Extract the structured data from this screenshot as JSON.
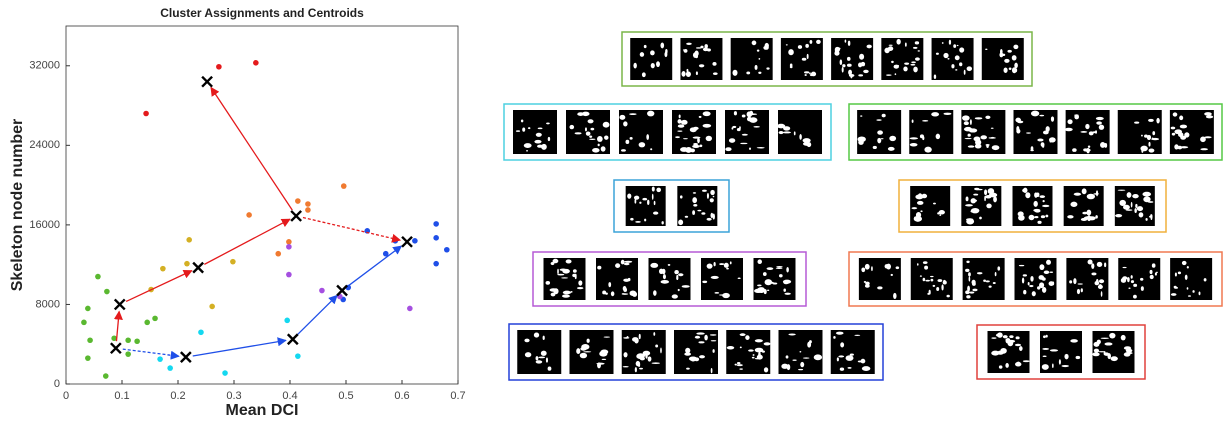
{
  "chart_data": {
    "type": "scatter",
    "title": "Cluster Assignments and Centroids",
    "x_label": "Mean DCI",
    "y_label": "Skeleton node number",
    "xlim": [
      0,
      0.7
    ],
    "ylim": [
      0,
      36000
    ],
    "xticks": [
      0,
      0.1,
      0.2,
      0.3,
      0.4,
      0.5,
      0.6,
      0.7
    ],
    "yticks": [
      0,
      8000,
      16000,
      24000,
      32000
    ],
    "series": [
      {
        "color": "#e41a1c",
        "x": [
          0.273,
          0.339,
          0.143
        ],
        "y": [
          31900,
          32300,
          27200
        ]
      },
      {
        "color": "#f07a30",
        "x": [
          0.496,
          0.414,
          0.432,
          0.432,
          0.327,
          0.398,
          0.379
        ],
        "y": [
          19900,
          18400,
          18100,
          17500,
          17000,
          14300,
          13100
        ]
      },
      {
        "color": "#d4b024",
        "x": [
          0.22,
          0.216,
          0.298,
          0.173,
          0.261,
          0.152
        ],
        "y": [
          14500,
          12100,
          12300,
          11600,
          7800,
          9500
        ]
      },
      {
        "color": "#5ab830",
        "x": [
          0.057,
          0.073,
          0.039,
          0.032,
          0.043,
          0.039,
          0.071,
          0.086,
          0.111,
          0.127,
          0.145,
          0.159,
          0.111
        ],
        "y": [
          10800,
          9300,
          7600,
          6200,
          4400,
          2600,
          800,
          4600,
          4400,
          4300,
          6200,
          6600,
          3000
        ]
      },
      {
        "color": "#14d8f0",
        "x": [
          0.168,
          0.186,
          0.241,
          0.284,
          0.395,
          0.414
        ],
        "y": [
          2500,
          1600,
          5200,
          1100,
          6400,
          2800
        ]
      },
      {
        "color": "#1f4fe8",
        "x": [
          0.538,
          0.571,
          0.588,
          0.623,
          0.661,
          0.661,
          0.68,
          0.661,
          0.504,
          0.495
        ],
        "y": [
          15400,
          13100,
          14400,
          14400,
          16100,
          14700,
          13500,
          12100,
          9700,
          8500
        ]
      },
      {
        "color": "#a54fe0",
        "x": [
          0.398,
          0.398,
          0.457,
          0.489,
          0.614
        ],
        "y": [
          13800,
          11000,
          9400,
          8800,
          7600
        ]
      }
    ],
    "centroids": {
      "x": [
        0.089,
        0.096,
        0.236,
        0.411,
        0.252,
        0.609,
        0.493,
        0.405,
        0.214
      ],
      "y": [
        3600,
        8000,
        11700,
        16900,
        30400,
        14300,
        9400,
        4500,
        2700
      ]
    },
    "arrows": [
      {
        "from": 0,
        "to": 1,
        "color": "#e41a1c",
        "dashed": false
      },
      {
        "from": 1,
        "to": 2,
        "color": "#e41a1c",
        "dashed": false
      },
      {
        "from": 2,
        "to": 3,
        "color": "#e41a1c",
        "dashed": false
      },
      {
        "from": 3,
        "to": 4,
        "color": "#e41a1c",
        "dashed": false
      },
      {
        "from": 3,
        "to": 5,
        "color": "#e41a1c",
        "dashed": true
      },
      {
        "from": 0,
        "to": 8,
        "color": "#1f4fe8",
        "dashed": true
      },
      {
        "from": 8,
        "to": 7,
        "color": "#1f4fe8",
        "dashed": false
      },
      {
        "from": 7,
        "to": 6,
        "color": "#1f4fe8",
        "dashed": false
      },
      {
        "from": 6,
        "to": 5,
        "color": "#1f4fe8",
        "dashed": false
      }
    ]
  }
}
